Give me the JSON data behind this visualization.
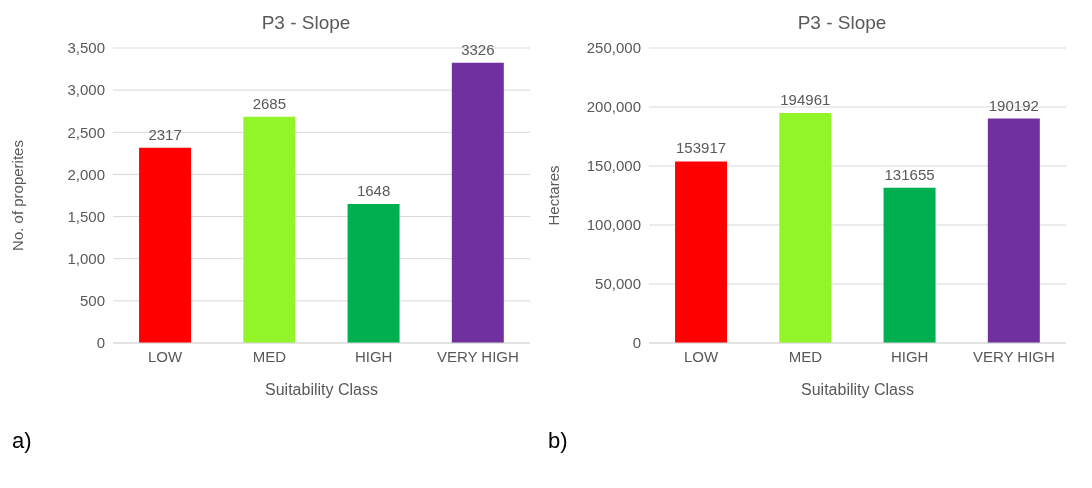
{
  "chart_data": [
    {
      "type": "bar",
      "title": "P3 - Slope",
      "xlabel": "Suitability Class",
      "ylabel": "No. of properites",
      "categories": [
        "LOW",
        "MED",
        "HIGH",
        "VERY HIGH"
      ],
      "values": [
        2317,
        2685,
        1648,
        3326
      ],
      "colors": [
        "#ff0000",
        "#92f52a",
        "#00b050",
        "#7030a0"
      ],
      "ylim": [
        0,
        3500
      ],
      "yticks": [
        0,
        {
          "value": 500,
          "label": "500"
        },
        {
          "value": 1000,
          "label": "1,000"
        },
        {
          "value": 1500,
          "label": "1,500"
        },
        {
          "value": 2000,
          "label": "2,000"
        },
        {
          "value": 2500,
          "label": "2,500"
        },
        {
          "value": 3000,
          "label": "3,000"
        },
        {
          "value": 3500,
          "label": "3,500"
        }
      ],
      "grid": "y",
      "data_labels": true,
      "annotations": [
        "a)"
      ]
    },
    {
      "type": "bar",
      "title": "P3 - Slope",
      "xlabel": "Suitability Class",
      "ylabel": "Hectares",
      "categories": [
        "LOW",
        "MED",
        "HIGH",
        "VERY HIGH"
      ],
      "values": [
        153917,
        194961,
        131655,
        190192
      ],
      "colors": [
        "#ff0000",
        "#92f52a",
        "#00b050",
        "#7030a0"
      ],
      "ylim": [
        0,
        250000
      ],
      "yticks": [
        0,
        {
          "value": 50000,
          "label": "50,000"
        },
        {
          "value": 100000,
          "label": "100,000"
        },
        {
          "value": 150000,
          "label": "150,000"
        },
        {
          "value": 200000,
          "label": "200,000"
        },
        {
          "value": 250000,
          "label": "250,000"
        }
      ],
      "grid": "y",
      "data_labels": true,
      "annotations": [
        "b)"
      ]
    }
  ]
}
